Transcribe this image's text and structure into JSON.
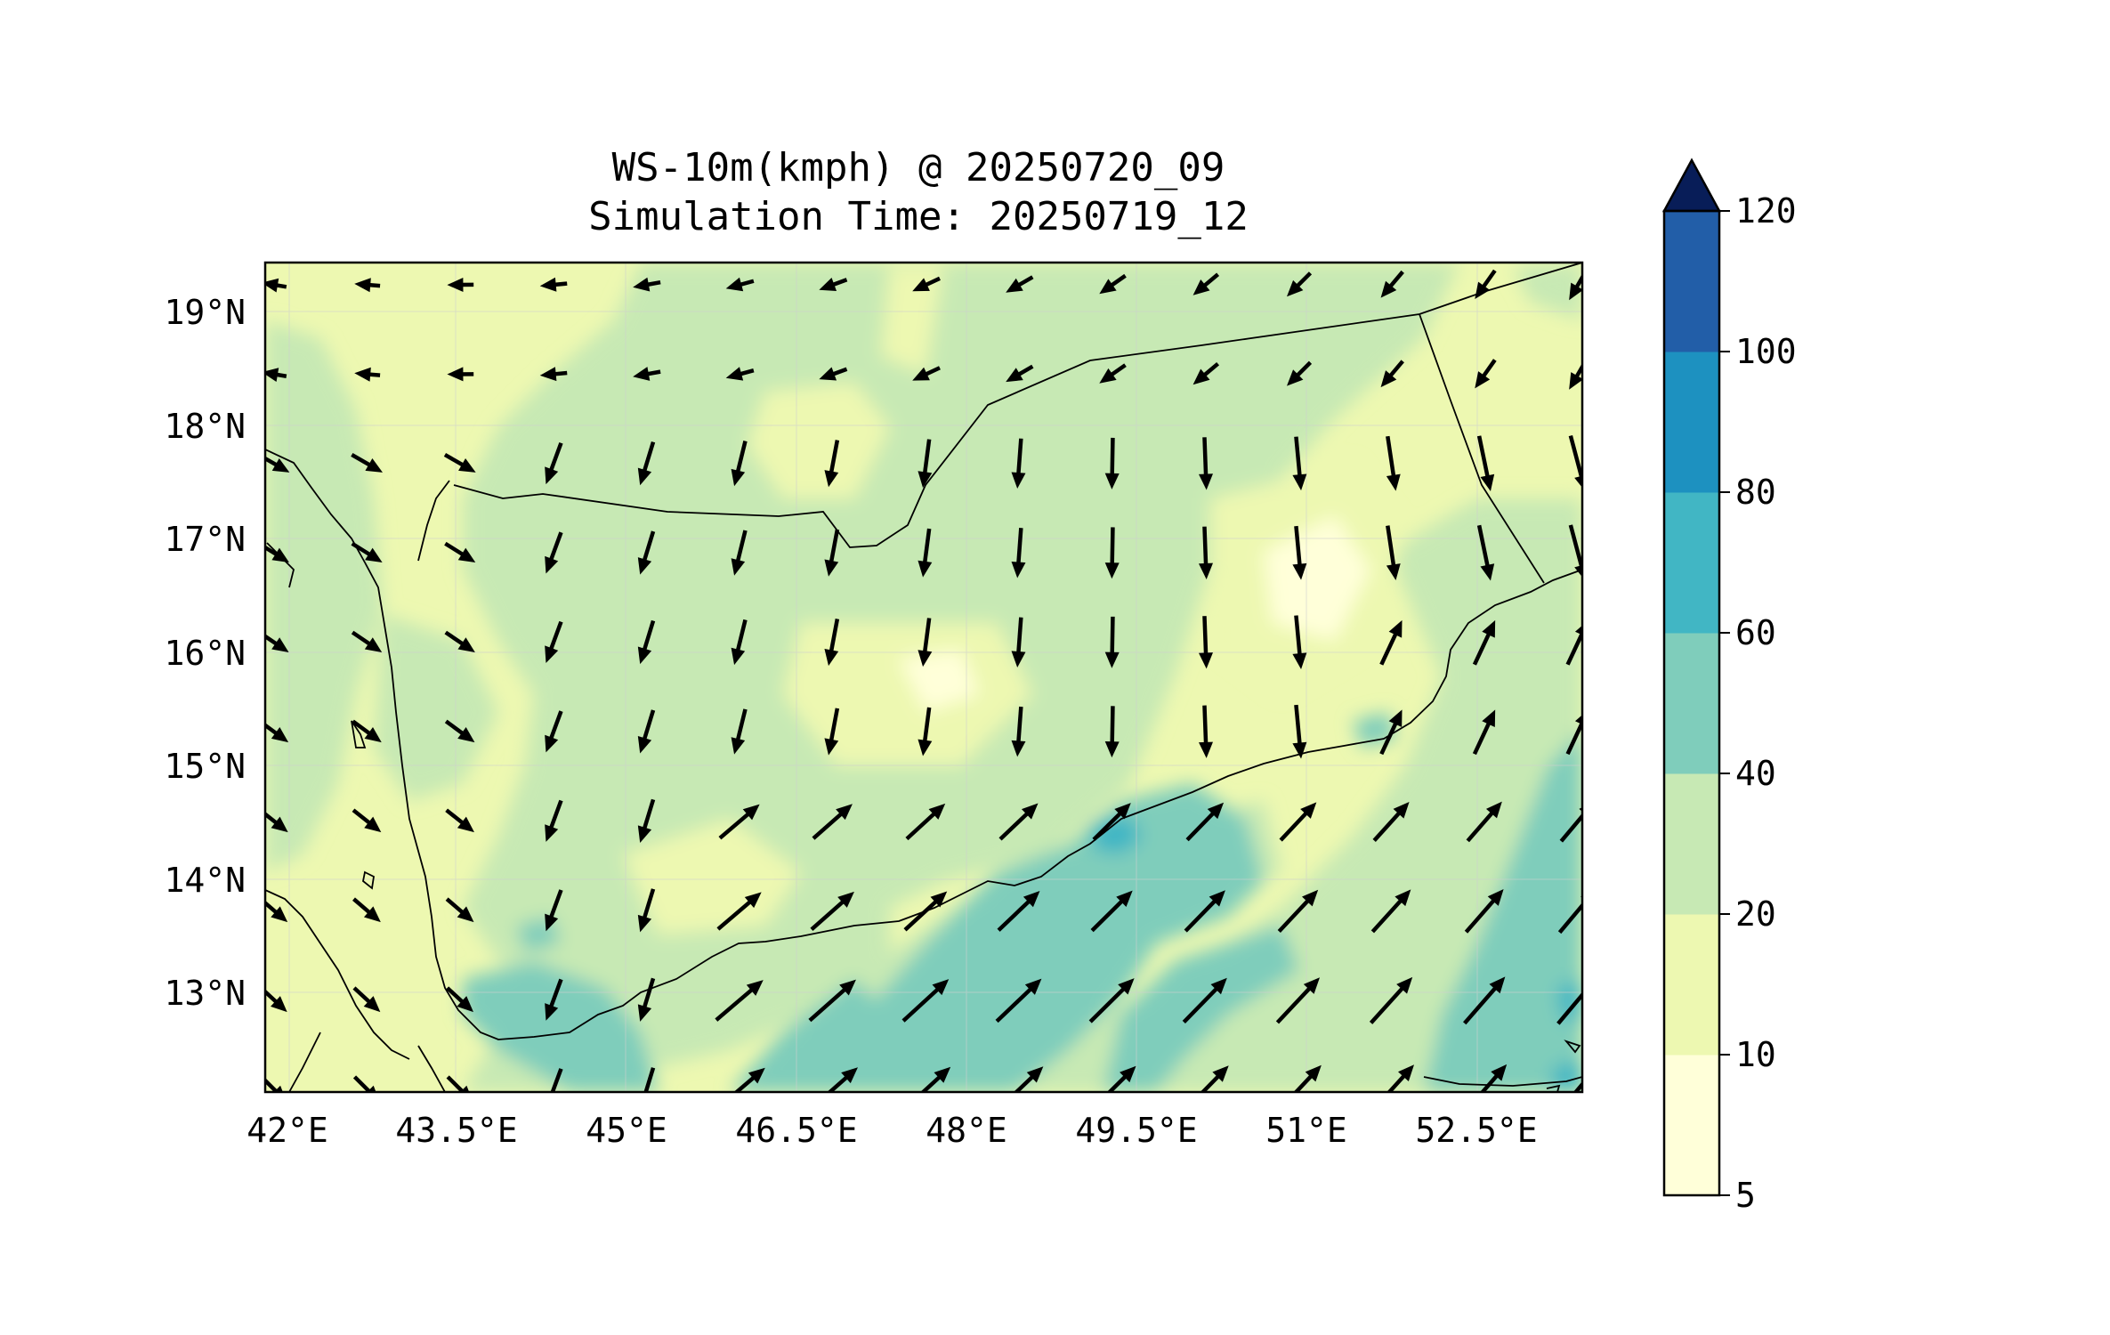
{
  "title": {
    "line1": "WS-10m(kmph) @ 20250720_09",
    "line2": "Simulation Time: 20250719_12"
  },
  "map": {
    "lat_ticks": [
      "19°N",
      "18°N",
      "17°N",
      "16°N",
      "15°N",
      "14°N",
      "13°N"
    ],
    "lon_ticks": [
      "42°E",
      "43.5°E",
      "45°E",
      "46.5°E",
      "48°E",
      "49.5°E",
      "51°E",
      "52.5°E"
    ],
    "lon_range": [
      41.9,
      53.7
    ],
    "lat_range": [
      12.1,
      19.45
    ],
    "background_color": "#f1f9c2",
    "vector_color": "#000000",
    "coastline_color": "#000000"
  },
  "colorbar": {
    "levels": [
      "5",
      "10",
      "20",
      "40",
      "60",
      "80",
      "100",
      "120"
    ],
    "colors": [
      "#ffffd9",
      "#edf8b1",
      "#c7e9b4",
      "#7fcdbb",
      "#41b6c4",
      "#1d91c0",
      "#225ea8",
      "#253494"
    ],
    "extend_color": "#081d58",
    "extend": "max"
  }
}
